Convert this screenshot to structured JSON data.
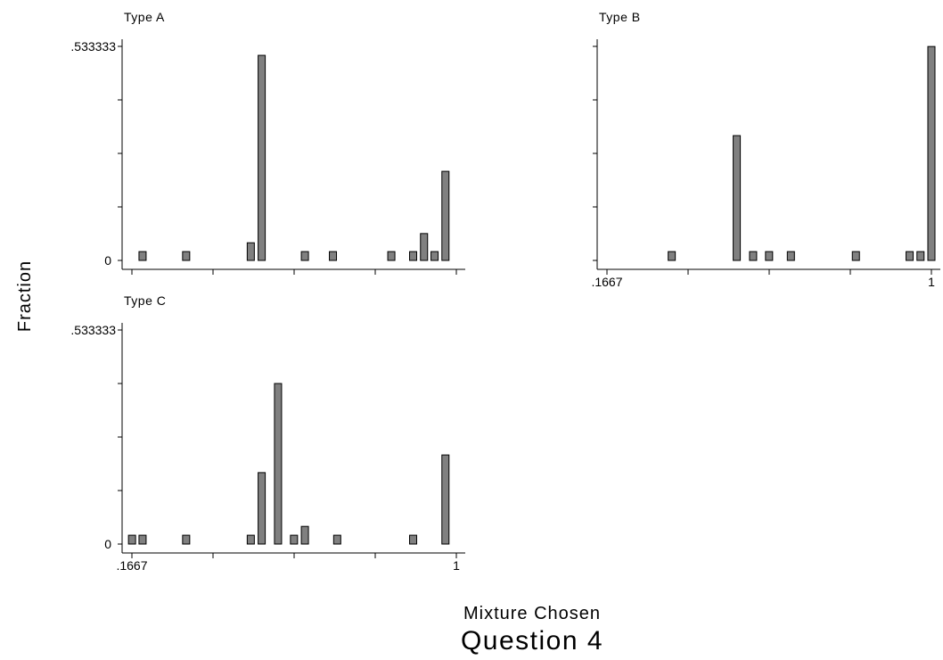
{
  "chart_data": {
    "type": "bar",
    "ylabel": "Fraction",
    "xlabel": "Mixture Chosen",
    "caption": "Question 4",
    "xlim": [
      0.1667,
      1
    ],
    "ylim": [
      0,
      0.533333
    ],
    "y_tick_labels": [
      ".533333",
      "0"
    ],
    "x_tick_labels": [
      ".1667",
      "1"
    ],
    "panels": [
      {
        "title": "Type A",
        "x": [
          0.194,
          0.306,
          0.472,
          0.5,
          0.611,
          0.683,
          0.833,
          0.889,
          0.917,
          0.944,
          0.972
        ],
        "values": [
          0.022,
          0.022,
          0.044,
          0.511,
          0.022,
          0.022,
          0.022,
          0.022,
          0.067,
          0.022,
          0.222
        ]
      },
      {
        "title": "Type B",
        "x": [
          0.333,
          0.5,
          0.542,
          0.583,
          0.639,
          0.806,
          0.944,
          0.972,
          1.0
        ],
        "values": [
          0.022,
          0.311,
          0.022,
          0.022,
          0.022,
          0.022,
          0.022,
          0.022,
          0.533
        ]
      },
      {
        "title": "Type C",
        "x": [
          0.167,
          0.194,
          0.306,
          0.472,
          0.5,
          0.542,
          0.583,
          0.611,
          0.694,
          0.889,
          0.972
        ],
        "values": [
          0.022,
          0.022,
          0.022,
          0.022,
          0.178,
          0.4,
          0.022,
          0.044,
          0.022,
          0.022,
          0.222
        ]
      }
    ]
  }
}
